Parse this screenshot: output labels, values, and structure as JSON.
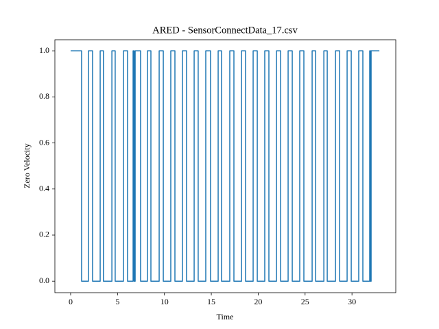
{
  "chart_data": {
    "type": "line",
    "title": "ARED - SensorConnectData_17.csv",
    "xlabel": "Time",
    "ylabel": "Zero Velocity",
    "x": [
      0,
      1.17,
      1.17,
      1.9,
      1.9,
      2.34,
      2.34,
      3.15,
      3.15,
      3.5,
      3.5,
      4.4,
      4.4,
      4.75,
      4.75,
      5.63,
      5.63,
      6.07,
      6.07,
      6.66,
      6.66,
      6.77,
      6.77,
      6.88,
      6.88,
      7.46,
      7.46,
      8.19,
      8.19,
      8.56,
      8.56,
      9.44,
      9.44,
      9.88,
      9.88,
      10.68,
      10.68,
      11.12,
      11.12,
      11.92,
      11.92,
      12.36,
      12.36,
      13.17,
      13.17,
      13.6,
      13.6,
      14.41,
      14.41,
      14.92,
      14.92,
      15.73,
      15.73,
      16.09,
      16.09,
      16.97,
      16.97,
      17.41,
      17.41,
      18.22,
      18.22,
      18.65,
      18.65,
      19.46,
      19.46,
      19.9,
      19.9,
      20.7,
      20.7,
      21.14,
      21.14,
      21.95,
      21.95,
      22.39,
      22.39,
      23.19,
      23.19,
      23.63,
      23.63,
      24.43,
      24.43,
      24.87,
      24.87,
      25.75,
      25.75,
      26.12,
      26.12,
      27.0,
      27.0,
      27.36,
      27.36,
      28.24,
      28.24,
      28.68,
      28.68,
      29.48,
      29.48,
      29.92,
      29.92,
      30.72,
      30.72,
      31.16,
      31.16,
      31.89,
      31.89,
      31.98,
      31.98,
      32.04,
      32.04,
      32.92
    ],
    "series": [
      {
        "color": "#1f77b4",
        "values": [
          1,
          1,
          0,
          0,
          1,
          1,
          0,
          0,
          1,
          1,
          0,
          0,
          1,
          1,
          0,
          0,
          1,
          1,
          0,
          0,
          1,
          1,
          0,
          0,
          1,
          1,
          0,
          0,
          1,
          1,
          0,
          0,
          1,
          1,
          0,
          0,
          1,
          1,
          0,
          0,
          1,
          1,
          0,
          0,
          1,
          1,
          0,
          0,
          1,
          1,
          0,
          0,
          1,
          1,
          0,
          0,
          1,
          1,
          0,
          0,
          1,
          1,
          0,
          0,
          1,
          1,
          0,
          0,
          1,
          1,
          0,
          0,
          1,
          1,
          0,
          0,
          1,
          1,
          0,
          0,
          1,
          1,
          0,
          0,
          1,
          1,
          0,
          0,
          1,
          1,
          0,
          0,
          1,
          1,
          0,
          0,
          1,
          1,
          0,
          0,
          1,
          1,
          0,
          0,
          1,
          1,
          0,
          0,
          1,
          1
        ]
      }
    ],
    "xlim": [
      -1.68,
      34.67
    ],
    "ylim": [
      -0.05,
      1.048
    ],
    "xticks": [
      0,
      5,
      10,
      15,
      20,
      25,
      30
    ],
    "yticks": [
      {
        "value": 0,
        "label": "0.0"
      },
      0.2,
      0.4,
      0.6,
      0.8,
      {
        "value": 1,
        "label": "1.0"
      }
    ]
  }
}
